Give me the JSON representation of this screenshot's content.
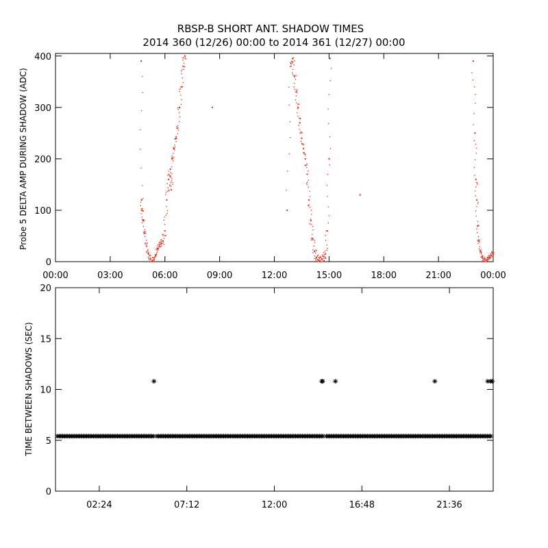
{
  "title_line1": "RBSP-B SHORT ANT. SHADOW TIMES",
  "title_line2": "2014 360 (12/26) 00:00 to 2014 361 (12/27) 00:00",
  "colors": {
    "top_points": "#e8321e",
    "bottom_points": "#000000",
    "axes": "#000000"
  },
  "chart_data": [
    {
      "type": "scatter",
      "ylabel": "Probe 5 DELTA AMP DURING SHADOW (ADC)",
      "xlabel": "",
      "xlim": [
        "00:00",
        "24:00"
      ],
      "ylim": [
        0,
        405
      ],
      "x_tick_labels": [
        "00:00",
        "03:00",
        "06:00",
        "09:00",
        "12:00",
        "15:00",
        "18:00",
        "21:00",
        "00:00"
      ],
      "x_tick_hours": [
        0,
        3,
        6,
        9,
        12,
        15,
        18,
        21,
        24
      ],
      "y_tick_labels": [
        "0",
        "100",
        "200",
        "300",
        "400"
      ],
      "y_ticks": [
        0,
        100,
        200,
        300,
        400
      ],
      "grid": false,
      "series": [
        {
          "marker": "dot",
          "x_hours": [
            4.7,
            4.72,
            4.75,
            4.8,
            4.9,
            5.0,
            5.1,
            5.2,
            5.3,
            5.4,
            5.5,
            5.6,
            5.7,
            5.8,
            5.9,
            6.0,
            6.1,
            6.2,
            6.3,
            6.35,
            6.4,
            6.5,
            6.6,
            6.7,
            6.8,
            6.9,
            7.0,
            7.1,
            8.6,
            12.7,
            12.9,
            13.0,
            13.1,
            13.2,
            13.3,
            13.4,
            13.5,
            13.6,
            13.7,
            13.8,
            13.9,
            14.0,
            14.1,
            14.2,
            14.3,
            14.4,
            14.5,
            14.6,
            14.7,
            14.8,
            14.9,
            15.0,
            15.05,
            16.7,
            22.9,
            23.0,
            23.05,
            23.1,
            23.15,
            23.2,
            23.3,
            23.4,
            23.5,
            23.6,
            23.7,
            23.8,
            23.9,
            24.0
          ],
          "y": [
            390,
            120,
            100,
            80,
            55,
            30,
            15,
            5,
            2,
            3,
            12,
            25,
            30,
            35,
            40,
            60,
            120,
            160,
            180,
            140,
            200,
            220,
            240,
            260,
            300,
            340,
            380,
            400,
            300,
            100,
            380,
            395,
            360,
            330,
            300,
            270,
            240,
            220,
            200,
            170,
            120,
            80,
            45,
            20,
            8,
            3,
            2,
            5,
            10,
            15,
            60,
            200,
            395,
            130,
            390,
            250,
            160,
            120,
            70,
            40,
            20,
            10,
            5,
            3,
            8,
            10,
            12,
            15
          ]
        }
      ]
    },
    {
      "type": "scatter",
      "ylabel": "TIME BETWEEN SHADOWS (SEC)",
      "xlabel": "",
      "xlim": [
        "00:00",
        "24:00"
      ],
      "ylim": [
        0,
        20
      ],
      "x_tick_labels": [
        "02:24",
        "07:12",
        "12:00",
        "16:48",
        "21:36"
      ],
      "x_tick_hours": [
        2.4,
        7.2,
        12.0,
        16.8,
        21.6
      ],
      "y_tick_labels": [
        "0",
        "5",
        "10",
        "15",
        "20"
      ],
      "y_ticks": [
        0,
        5,
        10,
        15,
        20
      ],
      "grid": false,
      "series": [
        {
          "marker": "asterisk",
          "baseline_value": 5.4,
          "baseline_x_range_hours": [
            0,
            24
          ],
          "baseline_gap_hours": [
            5.5,
            14.8
          ]
        },
        {
          "marker": "asterisk",
          "x_hours": [
            5.4,
            14.6,
            14.65,
            15.35,
            20.8,
            23.7,
            23.85,
            23.95
          ],
          "y": [
            10.8,
            10.8,
            10.8,
            10.8,
            10.8,
            10.8,
            10.8,
            10.8
          ]
        }
      ]
    }
  ]
}
